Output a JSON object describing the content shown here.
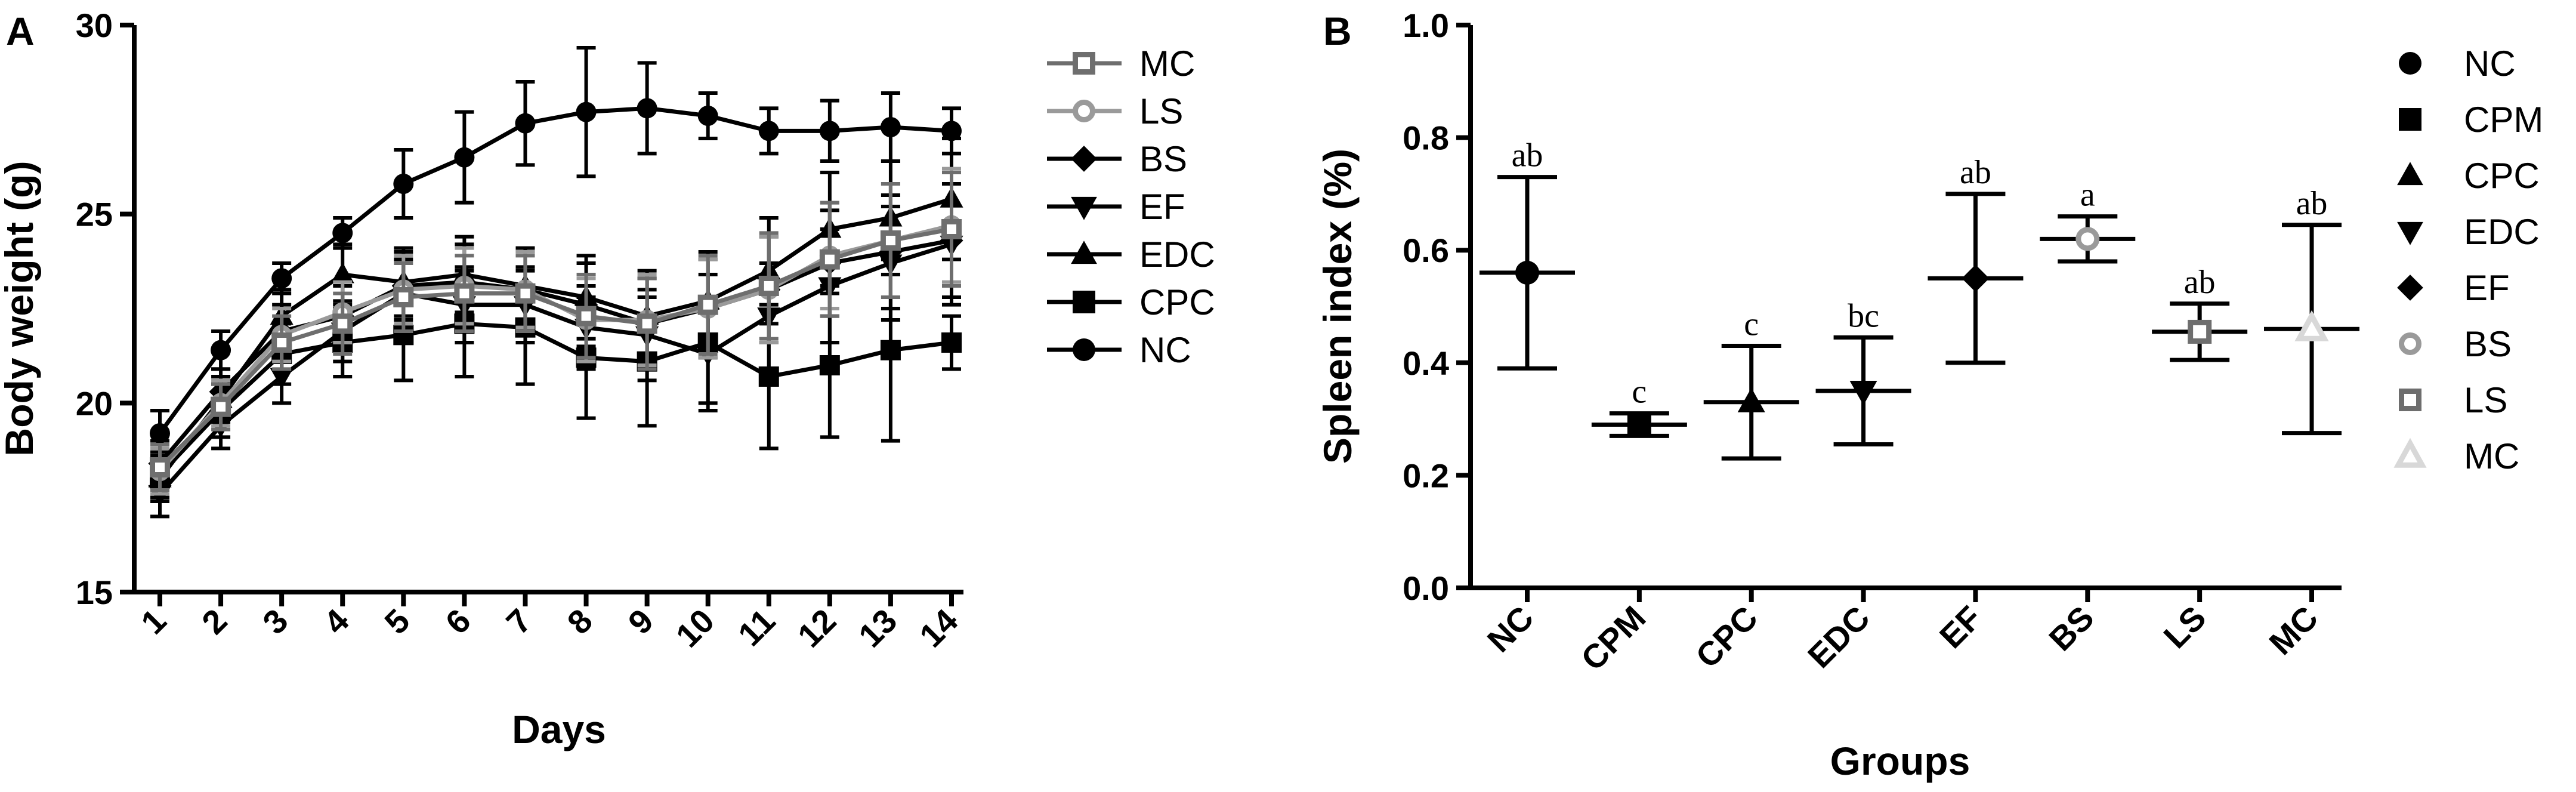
{
  "chart_data": [
    {
      "panel": "A",
      "type": "line",
      "xlabel": "Days",
      "ylabel": "Body weight (g)",
      "ylim": [
        15,
        30
      ],
      "yticks": [
        15,
        20,
        25,
        30
      ],
      "x": [
        1,
        2,
        3,
        4,
        5,
        6,
        7,
        8,
        9,
        10,
        11,
        12,
        13,
        14
      ],
      "legend_position": "right",
      "series": [
        {
          "name": "MC",
          "marker": "open-square",
          "color": "#6e6e6e",
          "values": [
            18.3,
            19.9,
            21.6,
            22.1,
            22.8,
            22.9,
            22.9,
            22.3,
            22.1,
            22.6,
            23.1,
            23.8,
            24.3,
            24.6
          ],
          "errors": [
            0.6,
            0.6,
            0.7,
            0.8,
            0.9,
            1.0,
            1.0,
            1.1,
            1.2,
            1.3,
            1.4,
            1.5,
            1.5,
            1.5
          ]
        },
        {
          "name": "LS",
          "marker": "open-circle",
          "color": "#9a9a9a",
          "values": [
            18.2,
            20.0,
            21.8,
            22.4,
            23.0,
            23.1,
            23.0,
            22.2,
            22.2,
            22.5,
            23.0,
            23.9,
            24.3,
            24.7
          ],
          "errors": [
            0.6,
            0.6,
            0.7,
            0.8,
            0.9,
            1.0,
            1.0,
            1.1,
            1.2,
            1.3,
            1.4,
            1.4,
            1.5,
            1.5
          ]
        },
        {
          "name": "BS",
          "marker": "diamond",
          "color": "#000000",
          "values": [
            18.4,
            20.3,
            21.9,
            22.3,
            23.1,
            23.2,
            23.0,
            22.6,
            22.1,
            22.5,
            23.0,
            23.7,
            24.0,
            24.3
          ],
          "errors": [
            0.6,
            0.6,
            0.7,
            0.8,
            0.9,
            1.0,
            1.0,
            1.1,
            1.2,
            1.3,
            1.4,
            1.4,
            1.5,
            1.5
          ]
        },
        {
          "name": "EF",
          "marker": "triangle-down",
          "color": "#000000",
          "values": [
            17.6,
            19.4,
            20.7,
            21.9,
            22.9,
            22.6,
            22.6,
            22.0,
            21.8,
            21.3,
            22.3,
            23.1,
            23.7,
            24.2
          ],
          "errors": [
            0.6,
            0.6,
            0.7,
            0.8,
            0.9,
            1.0,
            1.0,
            1.1,
            1.2,
            1.3,
            1.4,
            1.5,
            1.5,
            1.6
          ]
        },
        {
          "name": "EDC",
          "marker": "triangle-up",
          "color": "#000000",
          "values": [
            18.0,
            20.1,
            22.3,
            23.4,
            23.2,
            23.4,
            23.1,
            22.8,
            22.3,
            22.7,
            23.5,
            24.6,
            24.9,
            25.4
          ],
          "errors": [
            0.6,
            0.6,
            0.7,
            0.8,
            0.9,
            1.0,
            1.0,
            1.1,
            1.2,
            1.3,
            1.4,
            1.5,
            1.5,
            1.6
          ]
        },
        {
          "name": "CPC",
          "marker": "square",
          "color": "#000000",
          "values": [
            18.1,
            19.8,
            21.3,
            21.6,
            21.8,
            22.1,
            22.0,
            21.2,
            21.1,
            21.6,
            20.7,
            21.0,
            21.4,
            21.6
          ],
          "errors": [
            0.6,
            0.7,
            0.8,
            0.9,
            1.2,
            1.4,
            1.5,
            1.6,
            1.7,
            1.8,
            1.9,
            1.9,
            2.4,
            0.7
          ]
        },
        {
          "name": "NC",
          "marker": "circle",
          "color": "#000000",
          "values": [
            19.2,
            21.4,
            23.3,
            24.5,
            25.8,
            26.5,
            27.4,
            27.7,
            27.8,
            27.6,
            27.2,
            27.2,
            27.3,
            27.2
          ],
          "errors": [
            0.6,
            0.5,
            0.4,
            0.4,
            0.9,
            1.2,
            1.1,
            1.7,
            1.2,
            0.6,
            0.6,
            0.8,
            0.9,
            0.6
          ]
        }
      ]
    },
    {
      "panel": "B",
      "type": "scatter",
      "xlabel": "Groups",
      "ylabel": "Spleen index (%)",
      "ylim": [
        0.0,
        1.0
      ],
      "yticks": [
        "0.0",
        "0.2",
        "0.4",
        "0.6",
        "0.8",
        "1.0"
      ],
      "categories": [
        "NC",
        "CPM",
        "CPC",
        "EDC",
        "EF",
        "BS",
        "LS",
        "MC"
      ],
      "values": [
        0.56,
        0.29,
        0.33,
        0.35,
        0.55,
        0.62,
        0.455,
        0.46
      ],
      "errors": [
        0.17,
        0.02,
        0.1,
        0.095,
        0.15,
        0.04,
        0.05,
        0.185
      ],
      "significance": [
        "ab",
        "c",
        "c",
        "bc",
        "ab",
        "a",
        "ab",
        "ab"
      ],
      "legend_position": "right",
      "legend": [
        {
          "name": "NC",
          "marker": "circle",
          "color": "#000000"
        },
        {
          "name": "CPM",
          "marker": "square",
          "color": "#000000"
        },
        {
          "name": "CPC",
          "marker": "triangle-up",
          "color": "#000000"
        },
        {
          "name": "EDC",
          "marker": "triangle-down",
          "color": "#000000"
        },
        {
          "name": "EF",
          "marker": "diamond",
          "color": "#000000"
        },
        {
          "name": "BS",
          "marker": "open-circle",
          "color": "#9a9a9a"
        },
        {
          "name": "LS",
          "marker": "open-square",
          "color": "#6e6e6e"
        },
        {
          "name": "MC",
          "marker": "open-triangle",
          "color": "#d8d8d8"
        }
      ]
    }
  ]
}
